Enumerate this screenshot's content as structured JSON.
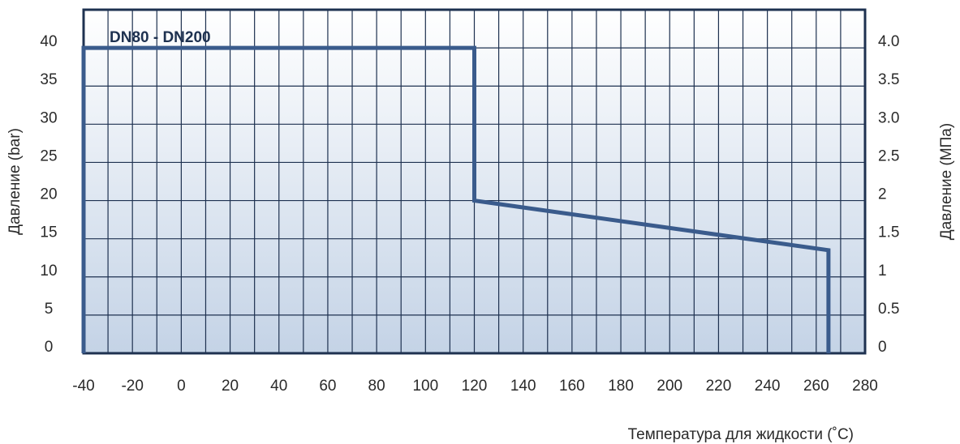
{
  "chart_data": {
    "type": "line",
    "series_label": "DN80 - DN200",
    "xlabel": "Температура для жидкости (˚C)",
    "ylabel": "Давление (bar)",
    "ylabel_right": "Давление (МПа)",
    "x_ticks": [
      "-40",
      "-20",
      "0",
      "20",
      "40",
      "60",
      "80",
      "100",
      "120",
      "140",
      "160",
      "180",
      "200",
      "220",
      "240",
      "260",
      "280"
    ],
    "y_ticks": [
      "0",
      "5",
      "10",
      "15",
      "20",
      "25",
      "30",
      "35",
      "40"
    ],
    "y_ticks_right": [
      "0",
      "0.5",
      "1",
      "1.5",
      "2",
      "2.5",
      "3.0",
      "3.5",
      "4.0"
    ],
    "xlim": [
      -40,
      280
    ],
    "ylim": [
      0,
      45
    ],
    "grid": true,
    "series": [
      {
        "x": [
          -40,
          -40,
          120,
          120,
          265,
          265
        ],
        "y": [
          0,
          40,
          40,
          20,
          13.5,
          0
        ]
      }
    ],
    "colors": {
      "line": "#3a5b8c",
      "frame": "#1e3150",
      "grid": "#1e3150",
      "fill_top": "#ffffff",
      "fill_bottom": "#c4d3e6"
    }
  }
}
